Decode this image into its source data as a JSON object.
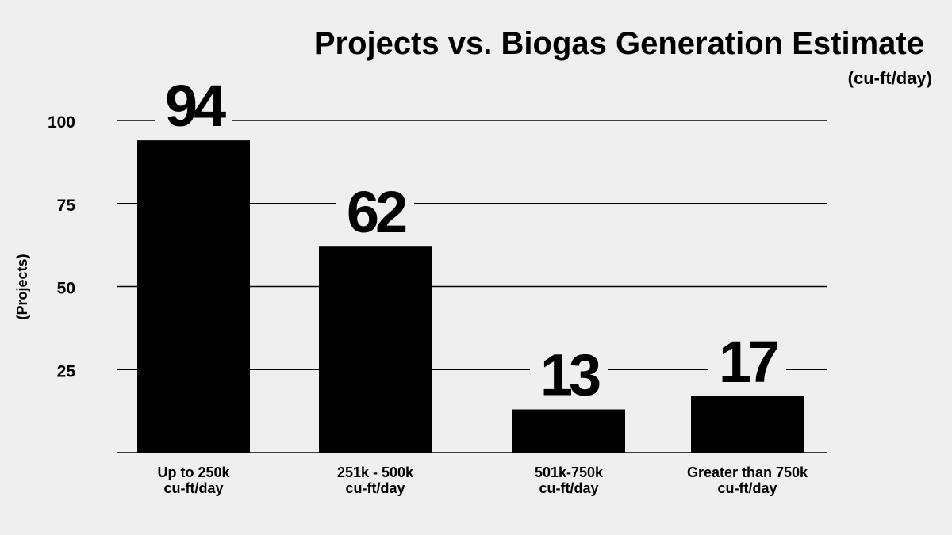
{
  "chart_data": {
    "type": "bar",
    "title": "Projects vs. Biogas Generation Estimate",
    "subtitle": "(cu-ft/day)",
    "ylabel": "(Projects)",
    "xlabel": "",
    "ylim": [
      0,
      100
    ],
    "yticks": [
      25,
      50,
      75,
      100
    ],
    "grid": true,
    "categories": [
      [
        "Up to 250k",
        "cu-ft/day"
      ],
      [
        "251k - 500k",
        "cu-ft/day"
      ],
      [
        "501k-750k",
        "cu-ft/day"
      ],
      [
        "Greater than 750k",
        "cu-ft/day"
      ]
    ],
    "values": [
      94,
      62,
      13,
      17
    ],
    "data_labels": [
      "94",
      "62",
      "13",
      "17"
    ],
    "colors": {
      "bar": "#000000",
      "grid": "#000000",
      "background": "#efefef"
    }
  }
}
